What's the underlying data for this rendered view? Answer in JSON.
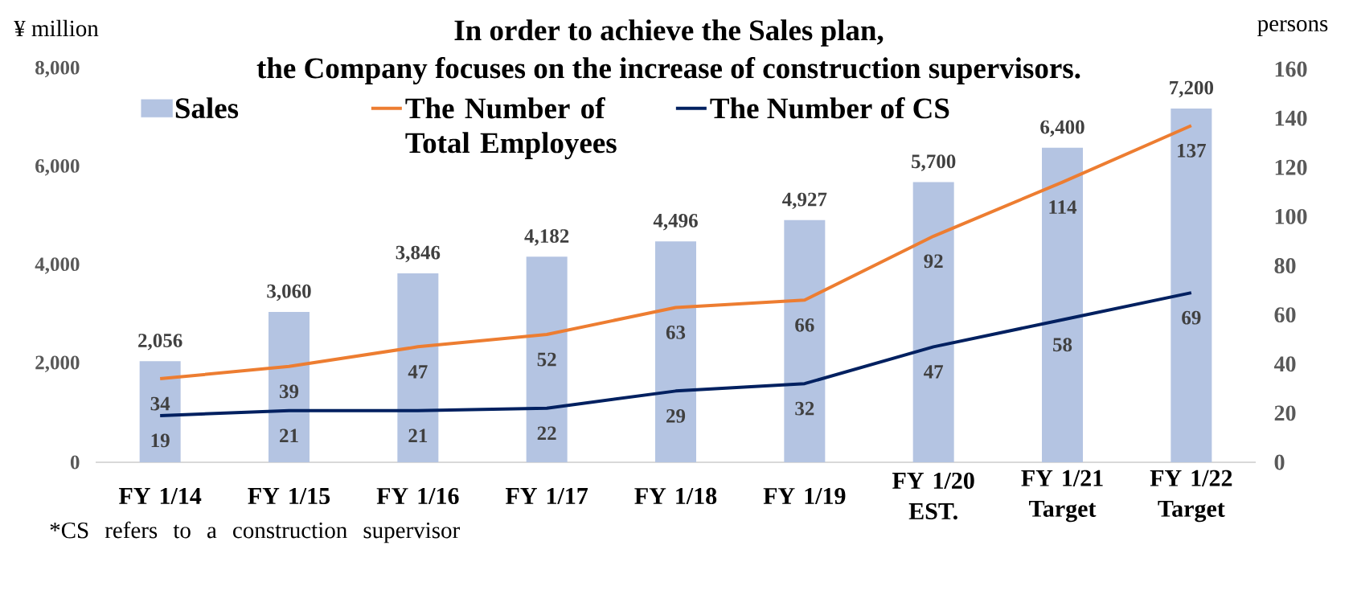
{
  "chart_data": {
    "type": "bar",
    "title": "In order to achieve the Sales plan,",
    "subtitle": "the Company focuses on the increase of construction supervisors.",
    "ylabel": "¥ million",
    "y2label": "persons",
    "categories": [
      "FY 1/14",
      "FY 1/15",
      "FY 1/16",
      "FY 1/17",
      "FY 1/18",
      "FY 1/19",
      "FY 1/20 EST.",
      "FY 1/21 Target",
      "FY 1/22 Target"
    ],
    "series": [
      {
        "name": "Sales",
        "color": "#B4C4E2",
        "values": [
          2056,
          3060,
          3846,
          4182,
          4496,
          4927,
          5700,
          6400,
          7200
        ],
        "value_labels": [
          "2,056",
          "3,060",
          "3,846",
          "4,182",
          "4,496",
          "4,927",
          "5,700",
          "6,400",
          "7,200"
        ]
      },
      {
        "name": "The Number of Total Employees",
        "type": "line",
        "axis": "y2",
        "color": "#ED7D31",
        "values": [
          34,
          39,
          47,
          52,
          63,
          66,
          92,
          114,
          137
        ],
        "value_labels": [
          "34",
          "39",
          "47",
          "52",
          "63",
          "66",
          "92",
          "114",
          "137"
        ]
      },
      {
        "name": "The Number of CS",
        "type": "line",
        "axis": "y2",
        "color": "#002060",
        "values": [
          19,
          21,
          21,
          22,
          29,
          32,
          47,
          58,
          69
        ],
        "value_labels": [
          "19",
          "21",
          "21",
          "22",
          "29",
          "32",
          "47",
          "58",
          "69"
        ]
      }
    ],
    "ylim": [
      0,
      8000
    ],
    "yticks": [
      0,
      {
        "value": 2000,
        "label": "2,000"
      },
      {
        "value": 4000,
        "label": "4,000"
      },
      {
        "value": 6000,
        "label": "6,000"
      },
      {
        "value": 8000,
        "label": "8,000"
      }
    ],
    "y2lim": [
      0,
      160
    ],
    "y2ticks": [
      0,
      20,
      40,
      60,
      80,
      100,
      120,
      140,
      160
    ],
    "legend": "top left",
    "marker": "none",
    "line_style": "solid",
    "annotations": [
      "*CS refers to a construction supervisor"
    ]
  }
}
